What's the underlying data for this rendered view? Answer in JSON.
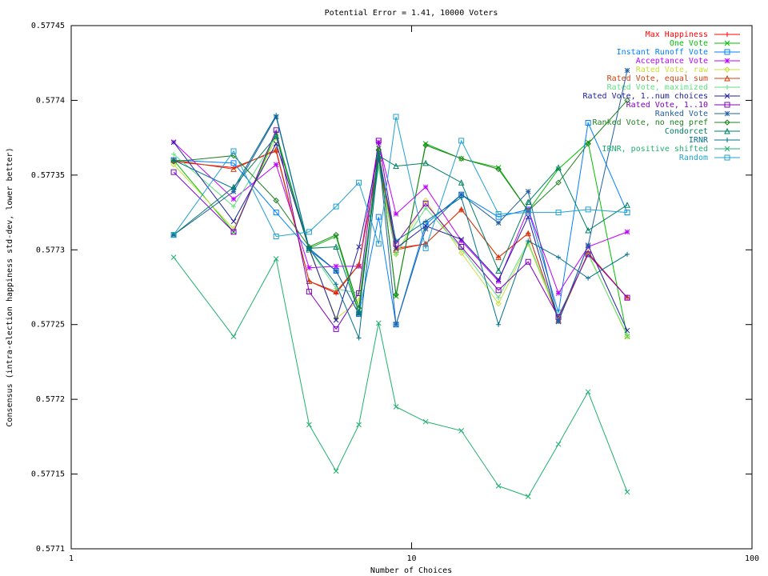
{
  "chart_data": {
    "type": "line",
    "title": "Potential Error = 1.41, 10000 Voters",
    "xlabel": "Number of Choices",
    "ylabel": "Consensus (intra-election happiness std-dev, lower better)",
    "xscale": "log",
    "xlim": [
      1,
      100
    ],
    "xticks": [
      1,
      10,
      100
    ],
    "ylim": [
      0.5771,
      0.57745
    ],
    "yticks": [
      0.5771,
      0.57715,
      0.5772,
      0.57725,
      0.5773,
      0.57735,
      0.5774,
      0.57745
    ],
    "legend": "upper right",
    "x": [
      2,
      3,
      4,
      5,
      6,
      7,
      8,
      9,
      11,
      14,
      18,
      22,
      27,
      33,
      43
    ],
    "series": [
      {
        "name": "Max Happiness",
        "color": "#ff0000",
        "values": [
          0.577359,
          0.577355,
          0.577366,
          0.577279,
          0.577271,
          0.57729,
          0.57736,
          0.577301,
          0.577304,
          0.577327,
          0.577295,
          0.577311,
          0.577253,
          0.577298,
          0.577268
        ]
      },
      {
        "name": "One Vote",
        "color": "#00c000",
        "values": [
          0.57736,
          0.577312,
          0.577378,
          0.577301,
          0.577309,
          0.577258,
          0.577368,
          0.577269,
          0.577371,
          0.577361,
          0.577355,
          0.577326,
          0.577354,
          0.577372,
          0.577242
        ]
      },
      {
        "name": "Instant Runoff Vote",
        "color": "#0080ff",
        "values": [
          0.57736,
          0.577358,
          0.577325,
          0.5773,
          0.577286,
          0.577257,
          0.577322,
          0.57725,
          0.577317,
          0.577337,
          0.577322,
          0.577327,
          0.577258,
          0.577385,
          0.577325
        ]
      },
      {
        "name": "Acceptance Vote",
        "color": "#c000ff",
        "values": [
          0.577372,
          0.577334,
          0.577357,
          0.577288,
          0.577289,
          0.577289,
          0.577372,
          0.577324,
          0.577342,
          0.577306,
          0.577279,
          0.577327,
          0.577271,
          0.577302,
          0.577312
        ]
      },
      {
        "name": "Rated Vote, raw",
        "color": "#c8e040",
        "values": [
          0.577357,
          0.577314,
          0.577375,
          0.5773,
          0.577254,
          0.577266,
          0.577357,
          0.577297,
          0.577333,
          0.577298,
          0.577264,
          0.577304,
          0.577254,
          0.577298,
          0.577242
        ]
      },
      {
        "name": "Rated Vote, equal sum",
        "color": "#d04010",
        "values": [
          0.57736,
          0.577354,
          0.577367,
          0.577279,
          0.577272,
          0.57729,
          0.577361,
          0.5773,
          0.577304,
          0.577327,
          0.577295,
          0.577311,
          0.577253,
          0.577298,
          0.577268
        ]
      },
      {
        "name": "Rated Vote, maximized",
        "color": "#60e080",
        "values": [
          0.577364,
          0.577329,
          0.577376,
          0.577301,
          0.577274,
          0.577271,
          0.577355,
          0.577297,
          0.577328,
          0.577301,
          0.577268,
          0.577305,
          0.577256,
          0.577297,
          0.577243
        ]
      },
      {
        "name": "Rated Vote, 1..num choices",
        "color": "#2020a0",
        "values": [
          0.577372,
          0.577319,
          0.577371,
          0.577301,
          0.577253,
          0.577302,
          0.577365,
          0.577301,
          0.577316,
          0.577307,
          0.57728,
          0.577322,
          0.577252,
          0.577303,
          0.577246
        ]
      },
      {
        "name": "Rated Vote, 1..10",
        "color": "#8000c0",
        "values": [
          0.577352,
          0.577312,
          0.57738,
          0.577272,
          0.577247,
          0.577271,
          0.577373,
          0.577304,
          0.577331,
          0.577302,
          0.577273,
          0.577292,
          0.577255,
          0.577297,
          0.577268
        ]
      },
      {
        "name": "Ranked Vote",
        "color": "#2060a0",
        "values": [
          0.57731,
          0.577339,
          0.577389,
          0.577301,
          0.577286,
          0.577257,
          0.577365,
          0.57725,
          0.577314,
          0.577337,
          0.577318,
          0.577339,
          0.577252,
          0.577303,
          0.57742
        ]
      },
      {
        "name": "Ranked Vote, no neg pref",
        "color": "#208020",
        "values": [
          0.577359,
          0.577363,
          0.577333,
          0.577302,
          0.57731,
          0.577261,
          0.577367,
          0.57727,
          0.57737,
          0.577361,
          0.577354,
          0.577326,
          0.577345,
          0.577371,
          0.5774
        ]
      },
      {
        "name": "Condorcet",
        "color": "#008060",
        "values": [
          0.57731,
          0.577342,
          0.577376,
          0.577301,
          0.577302,
          0.577258,
          0.577363,
          0.577356,
          0.577358,
          0.577345,
          0.577286,
          0.577332,
          0.577355,
          0.577313,
          0.57733
        ]
      },
      {
        "name": "IRNR",
        "color": "#007090",
        "values": [
          0.57736,
          0.577341,
          0.57739,
          0.577301,
          0.577277,
          0.577241,
          0.577361,
          0.577306,
          0.577319,
          0.577335,
          0.57725,
          0.577306,
          0.577295,
          0.577281,
          0.577297
        ]
      },
      {
        "name": "IRNR, positive shifted",
        "color": "#20b070",
        "values": [
          0.577295,
          0.577242,
          0.577294,
          0.577183,
          0.577152,
          0.577183,
          0.577251,
          0.577195,
          0.577185,
          0.577179,
          0.577142,
          0.577135,
          0.57717,
          0.577205,
          0.577138
        ]
      },
      {
        "name": "Random",
        "color": "#20a0d0",
        "values": [
          0.57731,
          0.577366,
          0.577309,
          0.577312,
          0.577329,
          0.577345,
          0.577304,
          0.577389,
          0.577301,
          0.577373,
          0.577324,
          0.577325,
          0.577325,
          0.577327,
          0.577325
        ]
      }
    ]
  }
}
